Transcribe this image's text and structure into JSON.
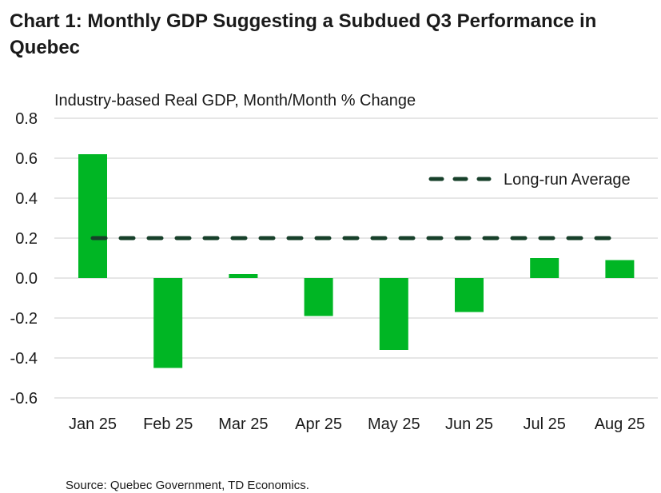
{
  "chart_data": {
    "type": "bar",
    "title": "Chart 1: Monthly GDP Suggesting a Subdued Q3 Performance in Quebec",
    "subtitle": "Industry-based Real GDP, Month/Month % Change",
    "categories": [
      "Jan 25",
      "Feb 25",
      "Mar 25",
      "Apr 25",
      "May 25",
      "Jun 25",
      "Jul 25",
      "Aug 25"
    ],
    "values": [
      0.62,
      -0.45,
      0.02,
      -0.19,
      -0.36,
      -0.17,
      0.1,
      0.09
    ],
    "reference_line": {
      "name": "Long-run Average",
      "value": 0.2,
      "style": "dashed"
    },
    "ylim": [
      -0.6,
      0.8
    ],
    "yticks": [
      "0.8",
      "0.6",
      "0.4",
      "0.2",
      "0.0",
      "-0.2",
      "-0.4",
      "-0.6"
    ],
    "grid": true,
    "legend": "top-right",
    "colors": {
      "bar": "#00b624",
      "reference": "#17402a",
      "grid": "#dddddd"
    }
  },
  "source": "Source: Quebec Government, TD Economics."
}
